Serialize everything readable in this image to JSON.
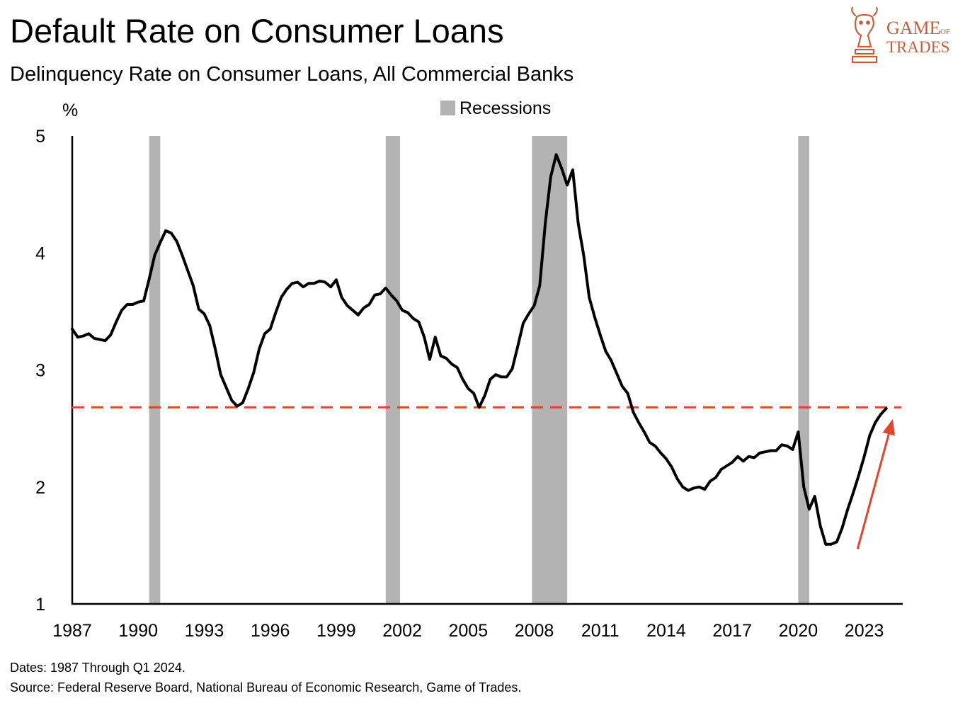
{
  "title": "Default Rate on Consumer Loans",
  "subtitle": "Delinquency Rate on Consumer Loans, All Commercial Banks",
  "notes": {
    "dates": "Dates: 1987 Through Q1 2024.",
    "source": "Source: Federal Reserve Board, National Bureau of Economic Research, Game of Trades."
  },
  "logo": {
    "word1": "GAME",
    "word2": "OF",
    "word3": "TRADES",
    "color": "#c0603f"
  },
  "chart_data": {
    "type": "line",
    "title": "Default Rate on Consumer Loans",
    "subtitle": "Delinquency Rate on Consumer Loans, All Commercial Banks",
    "ylabel": "%",
    "xlim": [
      1987,
      2024.75
    ],
    "ylim": [
      1,
      5
    ],
    "x_ticks": [
      "1987",
      "1990",
      "1993",
      "1996",
      "1999",
      "2002",
      "2005",
      "2008",
      "2011",
      "2014",
      "2017",
      "2020",
      "2023"
    ],
    "y_ticks": [
      "1",
      "2",
      "3",
      "4",
      "5"
    ],
    "grid": false,
    "legend": {
      "position": "top-center",
      "entries": [
        "Recessions"
      ]
    },
    "colors": {
      "line": "#000000",
      "recession": "#b3b3b3",
      "reference": "#e0452d",
      "arrow": "#e0452d"
    },
    "recessions": [
      [
        1990.5,
        1991.0
      ],
      [
        2001.25,
        2001.9
      ],
      [
        2007.9,
        2009.5
      ],
      [
        2020.0,
        2020.5
      ]
    ],
    "reference_level": 2.68,
    "arrow": {
      "from": [
        2022.7,
        1.47
      ],
      "to": [
        2024.3,
        2.58
      ]
    },
    "series": [
      {
        "x": [
          1987.0,
          1987.25,
          1987.5,
          1987.75,
          1988.0,
          1988.25,
          1988.5,
          1988.75,
          1989.0,
          1989.25,
          1989.5,
          1989.75,
          1990.0,
          1990.25,
          1990.5,
          1990.75,
          1991.0,
          1991.25,
          1991.5,
          1991.75,
          1992.0,
          1992.25,
          1992.5,
          1992.75,
          1993.0,
          1993.25,
          1993.5,
          1993.75,
          1994.0,
          1994.25,
          1994.5,
          1994.75,
          1995.0,
          1995.25,
          1995.5,
          1995.75,
          1996.0,
          1996.25,
          1996.5,
          1996.75,
          1997.0,
          1997.25,
          1997.5,
          1997.75,
          1998.0,
          1998.25,
          1998.5,
          1998.75,
          1999.0,
          1999.25,
          1999.5,
          1999.75,
          2000.0,
          2000.25,
          2000.5,
          2000.75,
          2001.0,
          2001.25,
          2001.5,
          2001.75,
          2002.0,
          2002.25,
          2002.5,
          2002.75,
          2003.0,
          2003.25,
          2003.5,
          2003.75,
          2004.0,
          2004.25,
          2004.5,
          2004.75,
          2005.0,
          2005.25,
          2005.5,
          2005.75,
          2006.0,
          2006.25,
          2006.5,
          2006.75,
          2007.0,
          2007.25,
          2007.5,
          2007.75,
          2008.0,
          2008.25,
          2008.5,
          2008.75,
          2009.0,
          2009.25,
          2009.5,
          2009.75,
          2010.0,
          2010.25,
          2010.5,
          2010.75,
          2011.0,
          2011.25,
          2011.5,
          2011.75,
          2012.0,
          2012.25,
          2012.5,
          2012.75,
          2013.0,
          2013.25,
          2013.5,
          2013.75,
          2014.0,
          2014.25,
          2014.5,
          2014.75,
          2015.0,
          2015.25,
          2015.5,
          2015.75,
          2016.0,
          2016.25,
          2016.5,
          2016.75,
          2017.0,
          2017.25,
          2017.5,
          2017.75,
          2018.0,
          2018.25,
          2018.5,
          2018.75,
          2019.0,
          2019.25,
          2019.5,
          2019.75,
          2020.0,
          2020.25,
          2020.5,
          2020.75,
          2021.0,
          2021.25,
          2021.5,
          2021.75,
          2022.0,
          2022.25,
          2022.5,
          2022.75,
          2023.0,
          2023.25,
          2023.5,
          2023.75,
          2024.0
        ],
        "y": [
          3.35,
          3.28,
          3.29,
          3.31,
          3.27,
          3.26,
          3.25,
          3.3,
          3.41,
          3.51,
          3.56,
          3.56,
          3.58,
          3.59,
          3.78,
          3.98,
          4.09,
          4.19,
          4.17,
          4.1,
          3.98,
          3.85,
          3.72,
          3.52,
          3.48,
          3.38,
          3.18,
          2.96,
          2.85,
          2.74,
          2.69,
          2.72,
          2.84,
          2.98,
          3.18,
          3.31,
          3.35,
          3.49,
          3.62,
          3.69,
          3.74,
          3.75,
          3.71,
          3.74,
          3.74,
          3.76,
          3.75,
          3.71,
          3.77,
          3.62,
          3.55,
          3.51,
          3.47,
          3.53,
          3.56,
          3.64,
          3.65,
          3.7,
          3.64,
          3.59,
          3.51,
          3.49,
          3.44,
          3.41,
          3.28,
          3.09,
          3.28,
          3.12,
          3.1,
          3.05,
          3.02,
          2.92,
          2.84,
          2.8,
          2.68,
          2.78,
          2.92,
          2.96,
          2.94,
          2.94,
          3.01,
          3.2,
          3.4,
          3.48,
          3.55,
          3.72,
          4.25,
          4.65,
          4.84,
          4.72,
          4.58,
          4.71,
          4.25,
          3.98,
          3.62,
          3.45,
          3.3,
          3.16,
          3.08,
          2.97,
          2.86,
          2.8,
          2.64,
          2.55,
          2.47,
          2.38,
          2.35,
          2.29,
          2.24,
          2.17,
          2.07,
          2.0,
          1.97,
          1.99,
          2.0,
          1.98,
          2.05,
          2.08,
          2.15,
          2.18,
          2.21,
          2.26,
          2.22,
          2.26,
          2.25,
          2.29,
          2.3,
          2.31,
          2.31,
          2.36,
          2.35,
          2.32,
          2.47,
          2.0,
          1.81,
          1.92,
          1.67,
          1.51,
          1.51,
          1.53,
          1.65,
          1.81,
          1.95,
          2.1,
          2.26,
          2.44,
          2.55,
          2.62,
          2.67
        ]
      }
    ]
  }
}
